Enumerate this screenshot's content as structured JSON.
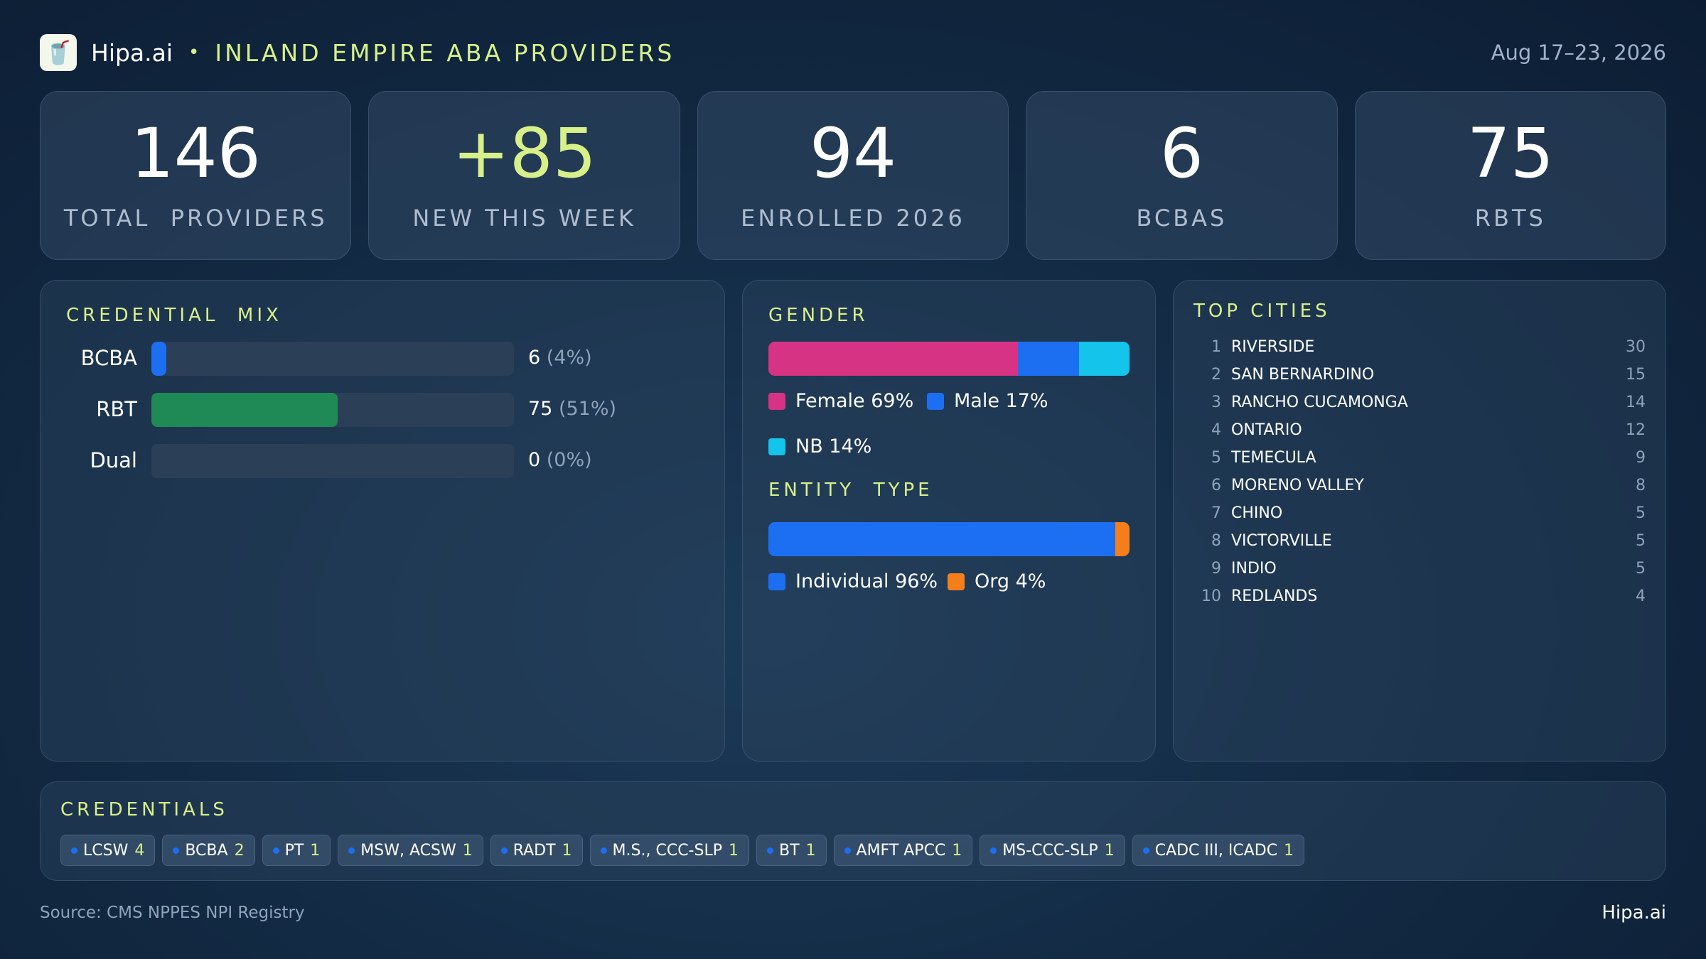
{
  "header": {
    "brand": "Hipa.ai",
    "separator": "•",
    "title": "INLAND EMPIRE ABA PROVIDERS",
    "date_range": "Aug 17–23, 2026",
    "logo_icon": "drink-cup-icon"
  },
  "kpis": [
    {
      "value": "146",
      "label": "TOTAL  PROVIDERS"
    },
    {
      "value": "+85",
      "label": "NEW THIS WEEK"
    },
    {
      "value": "94",
      "label": "ENROLLED 2026"
    },
    {
      "value": "6",
      "label": "BCBAS"
    },
    {
      "value": "75",
      "label": "RBTS"
    }
  ],
  "credential_mix": {
    "title": "CREDENTIAL  MIX"
  },
  "gender_panel": {
    "title": "GENDER"
  },
  "entity_panel": {
    "title": "ENTITY  TYPE"
  },
  "top_cities": {
    "title": "TOP CITIES",
    "rows": [
      {
        "rank": "1",
        "city": "RIVERSIDE",
        "count": "30"
      },
      {
        "rank": "2",
        "city": "SAN BERNARDINO",
        "count": "15"
      },
      {
        "rank": "3",
        "city": "RANCHO CUCAMONGA",
        "count": "14"
      },
      {
        "rank": "4",
        "city": "ONTARIO",
        "count": "12"
      },
      {
        "rank": "5",
        "city": "TEMECULA",
        "count": "9"
      },
      {
        "rank": "6",
        "city": "MORENO VALLEY",
        "count": "8"
      },
      {
        "rank": "7",
        "city": "CHINO",
        "count": "5"
      },
      {
        "rank": "8",
        "city": "VICTORVILLE",
        "count": "5"
      },
      {
        "rank": "9",
        "city": "INDIO",
        "count": "5"
      },
      {
        "rank": "10",
        "city": "REDLANDS",
        "count": "4"
      }
    ]
  },
  "credentials": {
    "title": "CREDENTIALS",
    "items": [
      {
        "label": "LCSW",
        "count": "4"
      },
      {
        "label": "BCBA",
        "count": "2"
      },
      {
        "label": "PT",
        "count": "1"
      },
      {
        "label": "MSW, ACSW",
        "count": "1"
      },
      {
        "label": "RADT",
        "count": "1"
      },
      {
        "label": "M.S., CCC-SLP",
        "count": "1"
      },
      {
        "label": "BT",
        "count": "1"
      },
      {
        "label": "AMFT APCC",
        "count": "1"
      },
      {
        "label": "MS-CCC-SLP",
        "count": "1"
      },
      {
        "label": "CADC III, ICADC",
        "count": "1"
      }
    ]
  },
  "footer": {
    "source": "Source: CMS NPPES NPI Registry",
    "brand": "Hipa.ai"
  },
  "chart_data": [
    {
      "type": "bar",
      "orientation": "horizontal",
      "title": "CREDENTIAL  MIX",
      "categories": [
        "BCBA",
        "RBT",
        "Dual"
      ],
      "values": [
        6,
        75,
        0
      ],
      "value_labels": [
        "6",
        "75",
        "0"
      ],
      "percent_labels": [
        "(4%)",
        "(51%)",
        "(0%)"
      ],
      "percents": [
        4,
        51,
        0
      ],
      "colors": [
        "#1d6ff2",
        "#1f8a55",
        "#1d6ff2"
      ],
      "xlim": [
        0,
        146
      ]
    },
    {
      "type": "bar",
      "stacked": true,
      "title": "GENDER",
      "series": [
        {
          "name": "Female",
          "value": 69,
          "label": "Female 69%",
          "color": "#d63384"
        },
        {
          "name": "Male",
          "value": 17,
          "label": "Male 17%",
          "color": "#1d6ff2"
        },
        {
          "name": "NB",
          "value": 14,
          "label": "NB 14%",
          "color": "#14c4ea"
        }
      ]
    },
    {
      "type": "bar",
      "stacked": true,
      "title": "ENTITY  TYPE",
      "series": [
        {
          "name": "Individual",
          "value": 96,
          "label": "Individual 96%",
          "color": "#1d6ff2"
        },
        {
          "name": "Org",
          "value": 4,
          "label": "Org 4%",
          "color": "#f47f1a"
        }
      ]
    }
  ]
}
